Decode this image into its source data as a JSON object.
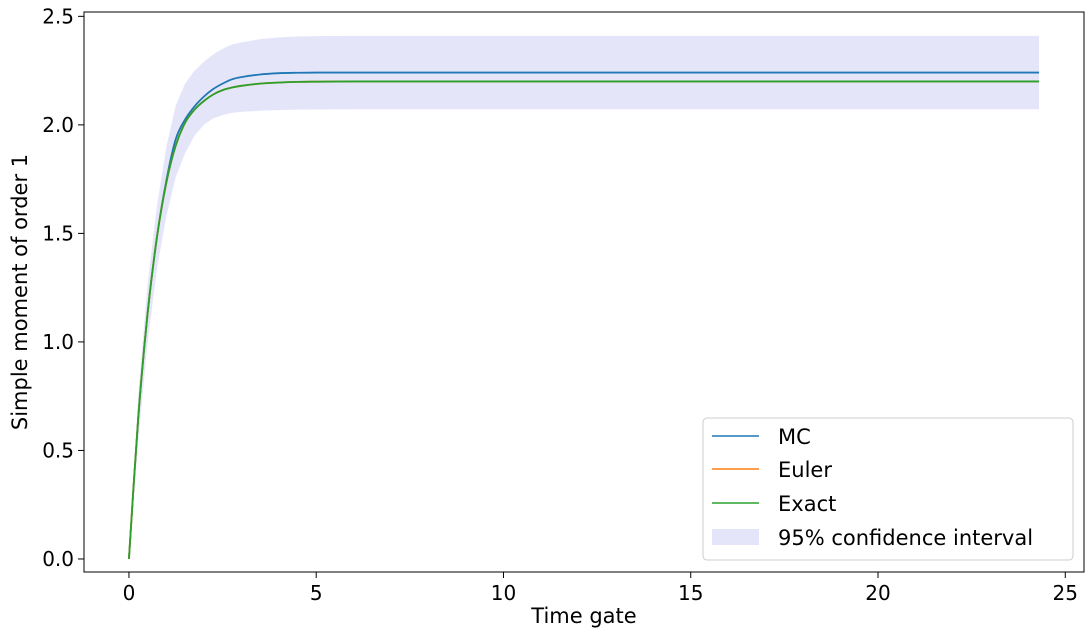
{
  "chart_data": {
    "type": "line",
    "xlabel": "Time gate",
    "ylabel": "Simple moment of order 1",
    "xlim": [
      -1.2,
      25.5
    ],
    "ylim": [
      -0.06,
      2.52
    ],
    "xticks": [
      0,
      5,
      10,
      15,
      20,
      25
    ],
    "yticks": [
      0.0,
      0.5,
      1.0,
      1.5,
      2.0,
      2.5
    ],
    "xtick_labels": [
      "0",
      "5",
      "10",
      "15",
      "20",
      "25"
    ],
    "ytick_labels": [
      "0.0",
      "0.5",
      "1.0",
      "1.5",
      "2.0",
      "2.5"
    ],
    "grid": false,
    "legend_position": "lower-right",
    "series": [
      {
        "name": "MC",
        "color": "#1f77b4",
        "x": [
          0,
          0.25,
          0.5,
          0.75,
          1.0,
          1.25,
          1.5,
          1.75,
          2.0,
          2.25,
          2.5,
          2.75,
          3.0,
          3.5,
          4.0,
          4.5,
          5.0,
          6.0,
          8.0,
          10.0,
          15.0,
          20.0,
          24.3
        ],
        "y": [
          0.0,
          0.655,
          1.135,
          1.485,
          1.745,
          1.935,
          2.025,
          2.085,
          2.13,
          2.165,
          2.19,
          2.21,
          2.22,
          2.232,
          2.238,
          2.24,
          2.241,
          2.241,
          2.241,
          2.241,
          2.241,
          2.241,
          2.241
        ]
      },
      {
        "name": "Euler",
        "color": "#ff7f0e",
        "x": [
          0,
          0.25,
          0.5,
          0.75,
          1.0,
          1.25,
          1.5,
          1.75,
          2.0,
          2.25,
          2.5,
          2.75,
          3.0,
          3.5,
          4.0,
          4.5,
          5.0,
          6.0,
          8.0,
          10.0,
          15.0,
          20.0,
          24.3
        ],
        "y": [
          0.0,
          0.655,
          1.135,
          1.485,
          1.735,
          1.905,
          2.01,
          2.07,
          2.11,
          2.14,
          2.16,
          2.172,
          2.18,
          2.19,
          2.195,
          2.198,
          2.199,
          2.2,
          2.2,
          2.2,
          2.2,
          2.2,
          2.2
        ]
      },
      {
        "name": "Exact",
        "color": "#2ca02c",
        "x": [
          0,
          0.25,
          0.5,
          0.75,
          1.0,
          1.25,
          1.5,
          1.75,
          2.0,
          2.25,
          2.5,
          2.75,
          3.0,
          3.5,
          4.0,
          4.5,
          5.0,
          6.0,
          8.0,
          10.0,
          15.0,
          20.0,
          24.3
        ],
        "y": [
          0.0,
          0.655,
          1.135,
          1.485,
          1.735,
          1.905,
          2.01,
          2.07,
          2.11,
          2.14,
          2.16,
          2.172,
          2.18,
          2.19,
          2.195,
          2.198,
          2.199,
          2.2,
          2.2,
          2.2,
          2.2,
          2.2,
          2.2
        ]
      }
    ],
    "band": {
      "name": "95% confidence interval",
      "color": "#e5e5fa",
      "x": [
        0,
        0.25,
        0.5,
        0.75,
        1.0,
        1.25,
        1.5,
        1.75,
        2.0,
        2.25,
        2.5,
        2.75,
        3.0,
        3.5,
        4.0,
        4.5,
        5.0,
        6.0,
        8.0,
        10.0,
        15.0,
        20.0,
        24.3
      ],
      "lower": [
        0.0,
        0.55,
        1.0,
        1.34,
        1.58,
        1.76,
        1.87,
        1.95,
        2.0,
        2.03,
        2.045,
        2.055,
        2.06,
        2.065,
        2.068,
        2.07,
        2.071,
        2.072,
        2.072,
        2.072,
        2.072,
        2.072,
        2.072
      ],
      "upper": [
        0.0,
        0.76,
        1.27,
        1.63,
        1.9,
        2.09,
        2.19,
        2.25,
        2.29,
        2.325,
        2.35,
        2.37,
        2.38,
        2.395,
        2.403,
        2.407,
        2.409,
        2.41,
        2.41,
        2.41,
        2.41,
        2.41,
        2.41
      ]
    }
  }
}
